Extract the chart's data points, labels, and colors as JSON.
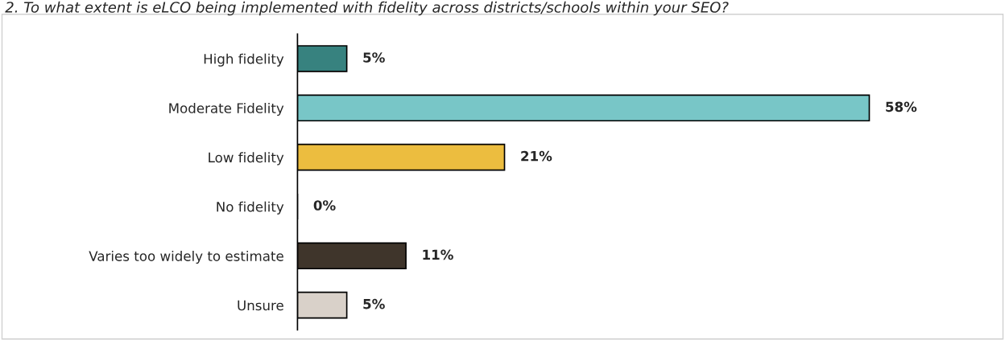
{
  "chart_data": {
    "type": "bar",
    "orientation": "horizontal",
    "title": "2. To what extent is eLCO being implemented with fidelity across districts/schools within your SEO?",
    "categories": [
      "High fidelity",
      "Moderate Fidelity",
      "Low fidelity",
      "No fidelity",
      "Varies too widely to estimate",
      "Unsure"
    ],
    "values": [
      5,
      58,
      21,
      0,
      11,
      5
    ],
    "colors": [
      "#37827f",
      "#78c6c7",
      "#ecbd3f",
      "#8c8c8c",
      "#3f352b",
      "#d9d1c9"
    ],
    "value_labels": [
      "5%",
      "58%",
      "21%",
      "0%",
      "11%",
      "5%"
    ],
    "grid": false,
    "legend": false
  }
}
